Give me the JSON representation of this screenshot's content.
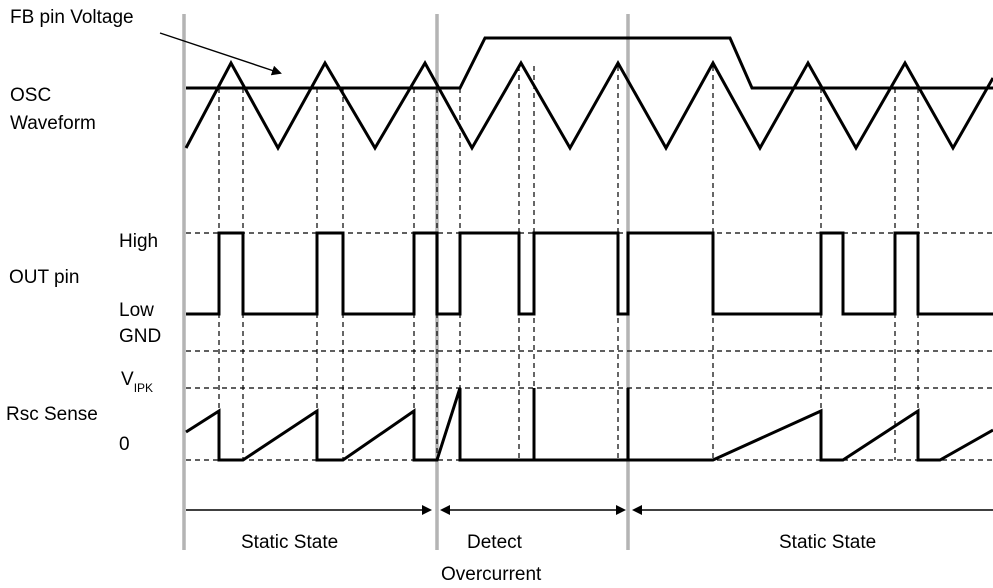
{
  "labels": {
    "fb_voltage": "FB pin Voltage",
    "osc_line1": "OSC",
    "osc_line2": "Waveform",
    "out_pin": "OUT pin",
    "high": "High",
    "low": "Low",
    "gnd": "GND",
    "v": "V",
    "ipk": "IPK",
    "rsc_sense": "Rsc Sense",
    "zero": "0"
  },
  "states": {
    "static_left": "Static State",
    "detect_line1": "Detect",
    "detect_line2": "Overcurrent",
    "static_right": "Static State"
  }
}
